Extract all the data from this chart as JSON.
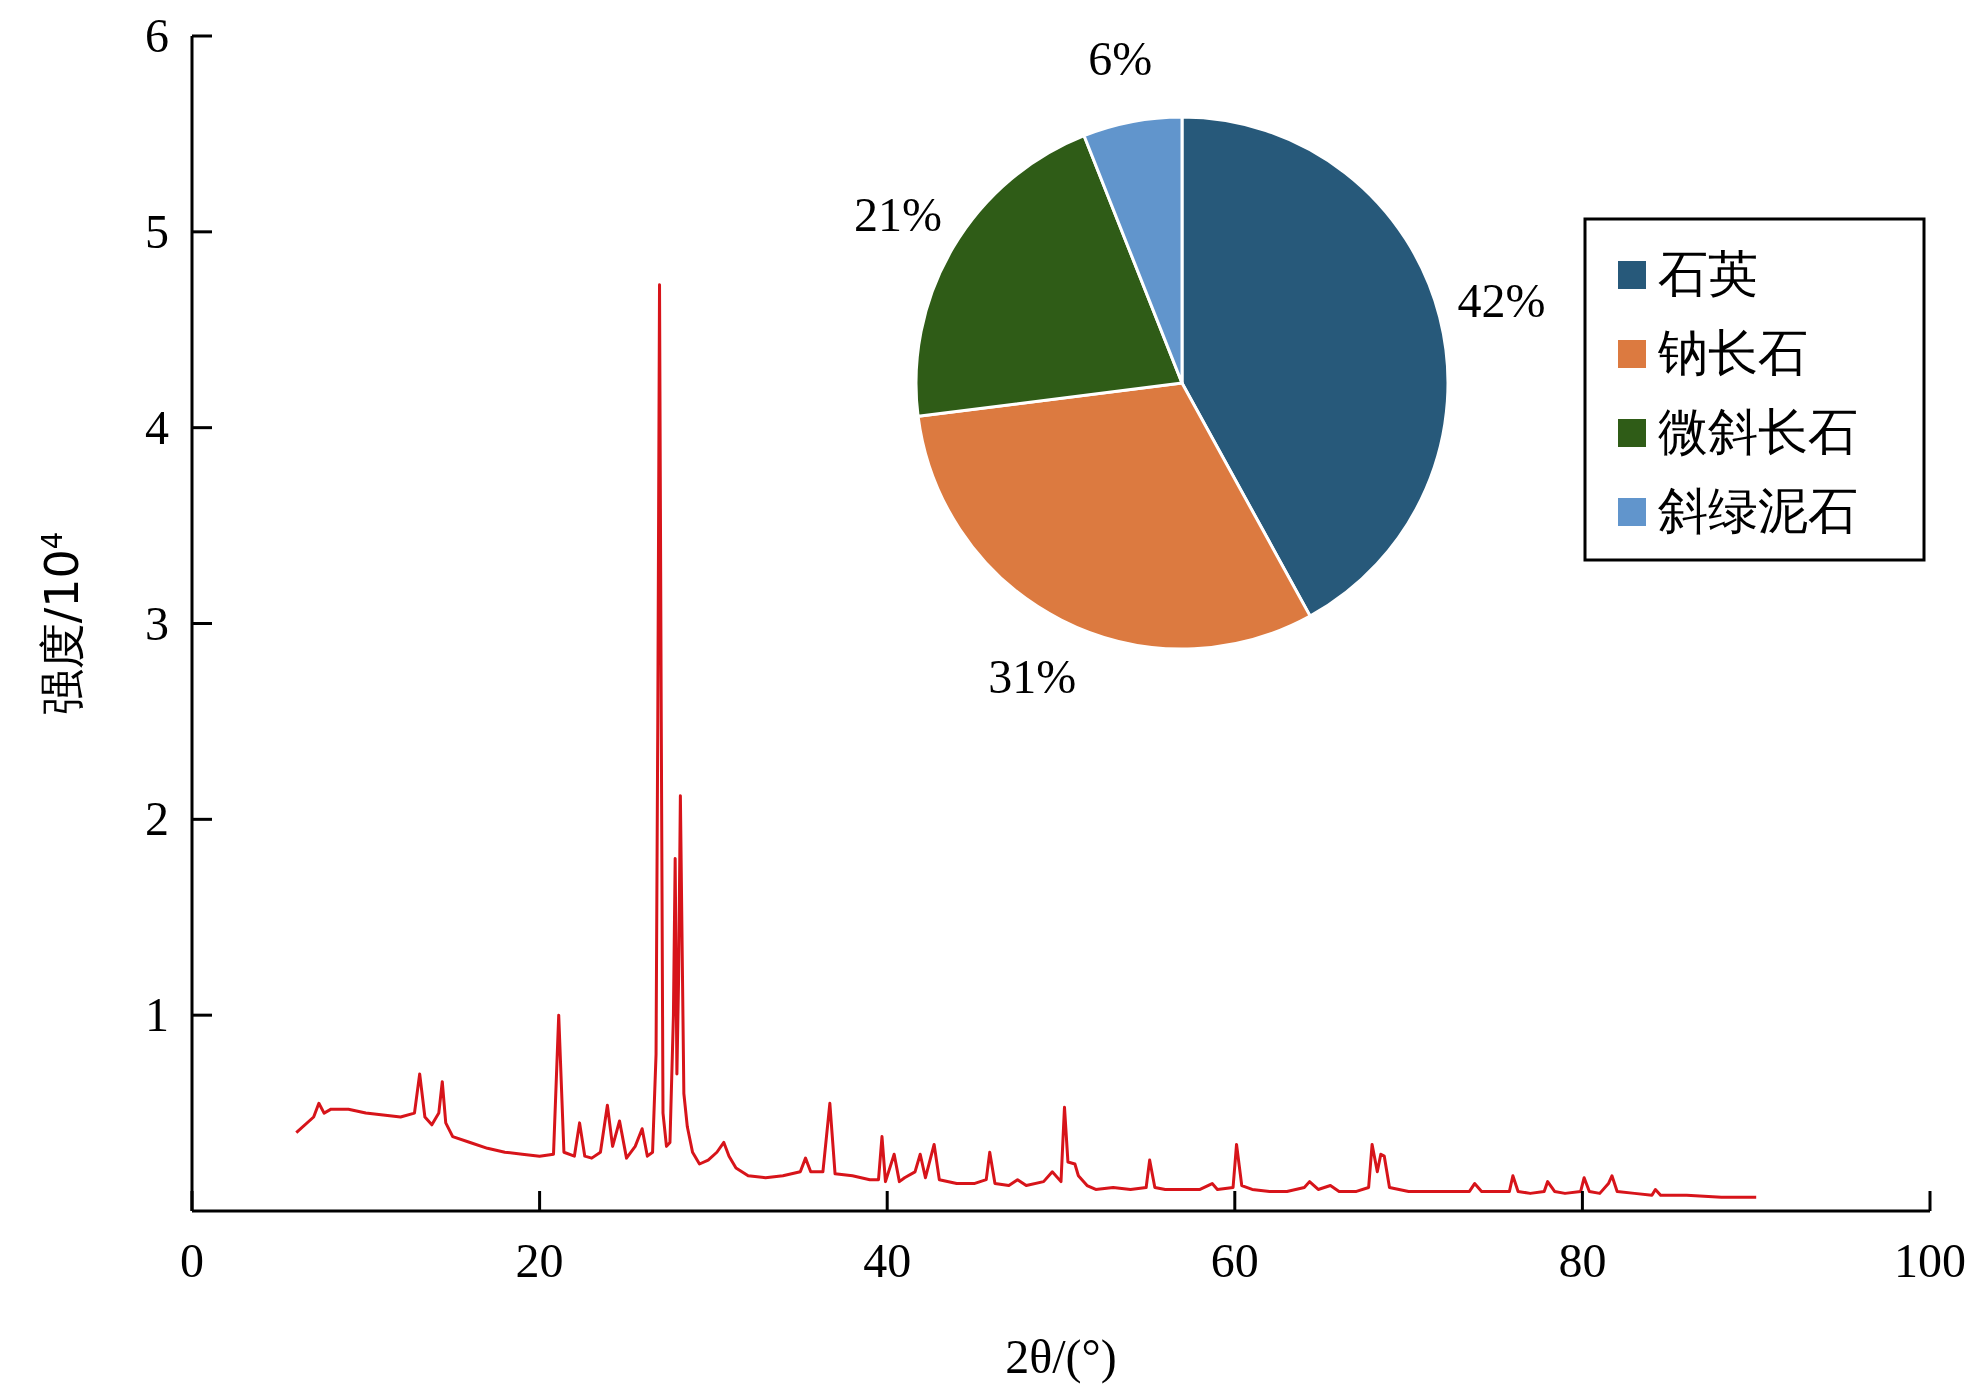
{
  "chart_data": [
    {
      "type": "line",
      "xlabel": "2θ/(°)",
      "ylabel": "强度/10$^{4}$",
      "xlim": [
        0,
        100
      ],
      "xticks": [
        0,
        20,
        40,
        60,
        80,
        100
      ],
      "ylim": [
        0,
        6
      ],
      "yticks": [
        1,
        2,
        3,
        4,
        5,
        6
      ],
      "grid": false,
      "marker": "none",
      "line_style": "solid",
      "series": [
        {
          "color": "#d7141a",
          "x": [
            6,
            7,
            7.3,
            7.6,
            8,
            9,
            10,
            11,
            12,
            12.8,
            13.1,
            13.4,
            13.8,
            14.2,
            14.4,
            14.6,
            15,
            16,
            17,
            18,
            19,
            20,
            20.8,
            21.1,
            21.4,
            22,
            22.3,
            22.6,
            23,
            23.5,
            23.9,
            24.2,
            24.6,
            25,
            25.5,
            25.9,
            26.2,
            26.5,
            26.7,
            26.8,
            26.9,
            27,
            27.1,
            27.3,
            27.5,
            27.7,
            27.8,
            27.9,
            28,
            28.1,
            28.3,
            28.5,
            28.8,
            29.2,
            29.7,
            30.2,
            30.6,
            30.9,
            31.3,
            32,
            33,
            34,
            35,
            35.3,
            35.6,
            36.3,
            36.7,
            37,
            38,
            39,
            39.5,
            39.7,
            39.9,
            40.4,
            40.7,
            41,
            41.6,
            41.9,
            42.2,
            42.7,
            43,
            44,
            45,
            45.7,
            45.9,
            46.2,
            47,
            47.5,
            48,
            49,
            49.5,
            50,
            50.2,
            50.4,
            50.8,
            51,
            51.5,
            52,
            53,
            54,
            54.9,
            55.1,
            55.4,
            56,
            57,
            58,
            58.7,
            59,
            59.9,
            60.1,
            60.4,
            61,
            62,
            63,
            64,
            64.3,
            64.8,
            65.5,
            66,
            67,
            67.7,
            67.9,
            68.2,
            68.4,
            68.6,
            68.9,
            70,
            72,
            73.5,
            73.8,
            74.2,
            75,
            75.8,
            76,
            76.3,
            77,
            77.8,
            78,
            78.4,
            79,
            79.9,
            80.1,
            80.4,
            81,
            81.5,
            81.7,
            82,
            83,
            84,
            84.2,
            84.5,
            86,
            88,
            90
          ],
          "values": [
            0.4,
            0.48,
            0.55,
            0.5,
            0.52,
            0.52,
            0.5,
            0.49,
            0.48,
            0.5,
            0.7,
            0.48,
            0.44,
            0.5,
            0.66,
            0.45,
            0.38,
            0.35,
            0.32,
            0.3,
            0.29,
            0.28,
            0.29,
            1.0,
            0.3,
            0.28,
            0.45,
            0.28,
            0.27,
            0.3,
            0.54,
            0.33,
            0.46,
            0.27,
            0.33,
            0.42,
            0.28,
            0.3,
            0.8,
            2.5,
            4.73,
            2.5,
            0.5,
            0.33,
            0.35,
            1.0,
            1.8,
            0.7,
            1.2,
            2.12,
            0.6,
            0.43,
            0.3,
            0.24,
            0.26,
            0.3,
            0.35,
            0.28,
            0.22,
            0.18,
            0.17,
            0.18,
            0.2,
            0.27,
            0.2,
            0.2,
            0.55,
            0.19,
            0.18,
            0.16,
            0.16,
            0.38,
            0.15,
            0.29,
            0.15,
            0.17,
            0.2,
            0.29,
            0.17,
            0.34,
            0.16,
            0.14,
            0.14,
            0.16,
            0.3,
            0.14,
            0.13,
            0.16,
            0.13,
            0.15,
            0.2,
            0.15,
            0.53,
            0.25,
            0.24,
            0.18,
            0.13,
            0.11,
            0.12,
            0.11,
            0.12,
            0.26,
            0.12,
            0.11,
            0.11,
            0.11,
            0.14,
            0.11,
            0.12,
            0.34,
            0.13,
            0.11,
            0.1,
            0.1,
            0.12,
            0.15,
            0.11,
            0.13,
            0.1,
            0.1,
            0.12,
            0.34,
            0.2,
            0.29,
            0.28,
            0.12,
            0.1,
            0.1,
            0.1,
            0.14,
            0.1,
            0.1,
            0.1,
            0.18,
            0.1,
            0.09,
            0.1,
            0.15,
            0.1,
            0.09,
            0.1,
            0.17,
            0.1,
            0.09,
            0.14,
            0.18,
            0.1,
            0.09,
            0.08,
            0.11,
            0.08,
            0.08,
            0.07,
            0.07
          ]
        }
      ]
    },
    {
      "type": "pie",
      "categories": [
        "石英",
        "钠长石",
        "微斜长石",
        "斜绿泥石"
      ],
      "values": [
        42,
        31,
        21,
        6
      ],
      "colors": [
        "#27597a",
        "#dc7a40",
        "#2f5c17",
        "#6195cc"
      ],
      "value_labels": [
        "42%",
        "31%",
        "21%",
        "6%"
      ],
      "legend": "right"
    }
  ]
}
